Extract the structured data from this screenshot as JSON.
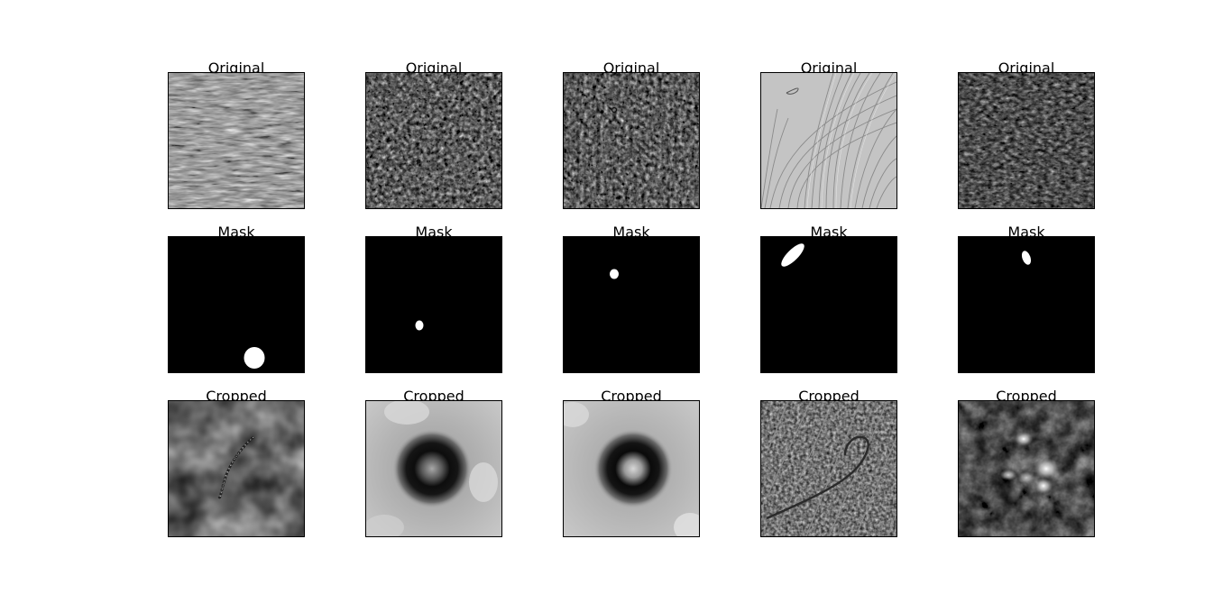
{
  "figure": {
    "rows": [
      {
        "title": "Original",
        "panels": [
          {
            "name": "original-1",
            "content": "vertical-banded-noise"
          },
          {
            "name": "original-2",
            "content": "fine-grain-noise"
          },
          {
            "name": "original-3",
            "content": "fine-grain-noise"
          },
          {
            "name": "original-4",
            "content": "curved-grooves"
          },
          {
            "name": "original-5",
            "content": "dark-grain-noise"
          }
        ]
      },
      {
        "title": "Mask",
        "panels": [
          {
            "name": "mask-1",
            "content": "round-blob-bottom"
          },
          {
            "name": "mask-2",
            "content": "small-dot"
          },
          {
            "name": "mask-3",
            "content": "small-dot"
          },
          {
            "name": "mask-4",
            "content": "diagonal-ellipse"
          },
          {
            "name": "mask-5",
            "content": "small-ellipse"
          }
        ]
      },
      {
        "title": "Cropped",
        "panels": [
          {
            "name": "cropped-1",
            "content": "thin-curved-scratch"
          },
          {
            "name": "cropped-2",
            "content": "dark-ring"
          },
          {
            "name": "cropped-3",
            "content": "dark-ring"
          },
          {
            "name": "cropped-4",
            "content": "curved-line-over-grooves"
          },
          {
            "name": "cropped-5",
            "content": "bright-speckles"
          }
        ]
      }
    ]
  }
}
